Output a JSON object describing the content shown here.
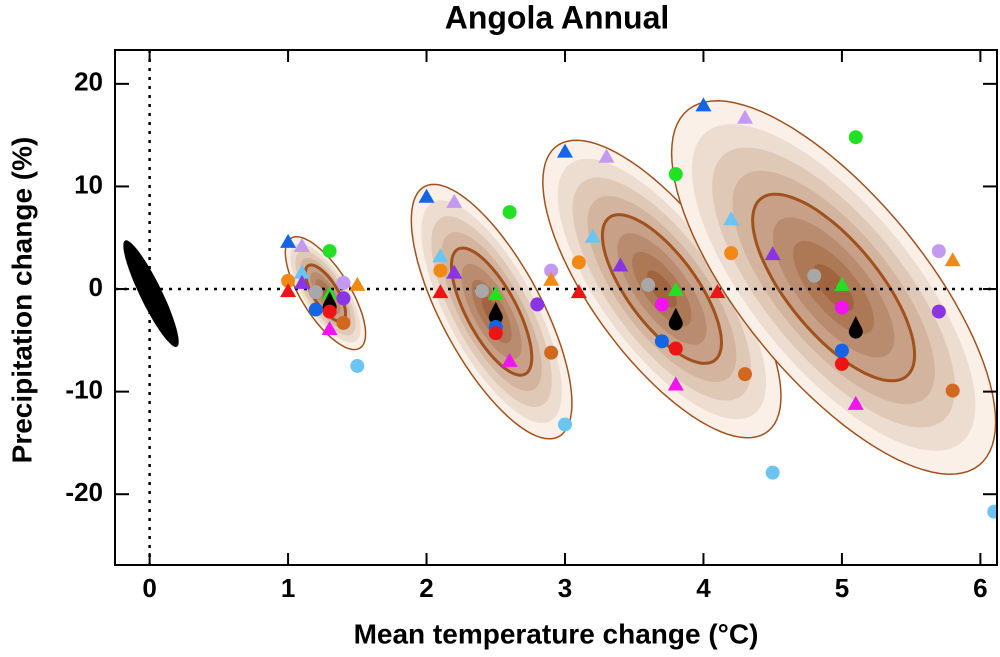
{
  "chart_data": {
    "type": "scatter",
    "title": "Angola Annual",
    "x_label": "Mean temperature change (°C)",
    "y_label": "Precipitation change (%)",
    "xlim": [
      -0.25,
      6.12
    ],
    "ylim": [
      -26.9,
      23.3
    ],
    "xticks": [
      0,
      1,
      2,
      3,
      4,
      5,
      6
    ],
    "yticks": [
      -20,
      -10,
      0,
      10,
      20
    ],
    "zero_lines": true,
    "control": {
      "x": 0.01,
      "y": -0.45,
      "sx": 0.2,
      "sy": 5.2,
      "rho": -0.9,
      "color": "#000000"
    },
    "ellipses": [
      {
        "x": 1.27,
        "y": -0.4,
        "sx": 0.29,
        "sy": 5.5,
        "rho": -0.72
      },
      {
        "x": 2.47,
        "y": -2.2,
        "sx": 0.58,
        "sy": 12.4,
        "rho": -0.72
      },
      {
        "x": 3.7,
        "y": 0,
        "sx": 0.86,
        "sy": 14.5,
        "rho": -0.72
      },
      {
        "x": 4.94,
        "y": 0.15,
        "sx": 1.17,
        "sy": 18.2,
        "rho": -0.72
      }
    ],
    "series": [
      {
        "color": "#1464e6",
        "marker": "triangle",
        "x": [
          1.0,
          2.0,
          3.0,
          4.0
        ],
        "values": [
          4.6,
          9.0,
          13.4,
          17.9
        ]
      },
      {
        "color": "#c49af0",
        "marker": "triangle",
        "x": [
          1.1,
          2.2,
          3.3,
          4.3
        ],
        "values": [
          4.2,
          8.5,
          12.9,
          16.7
        ]
      },
      {
        "color": "#22e022",
        "marker": "circle",
        "x": [
          1.3,
          2.6,
          3.8,
          5.1
        ],
        "values": [
          3.7,
          7.5,
          11.2,
          14.8
        ]
      },
      {
        "color": "#6cc4f2",
        "marker": "triangle",
        "x": [
          1.1,
          2.1,
          3.2,
          4.2
        ],
        "values": [
          1.6,
          3.2,
          5.1,
          6.8
        ]
      },
      {
        "color": "#f08a14",
        "marker": "circle",
        "x": [
          1.0,
          2.1,
          3.1,
          4.2
        ],
        "values": [
          0.8,
          1.8,
          2.6,
          3.5
        ]
      },
      {
        "color": "#8a34e4",
        "marker": "triangle",
        "x": [
          1.1,
          2.2,
          3.4,
          4.5
        ],
        "values": [
          0.6,
          1.6,
          2.3,
          3.4
        ]
      },
      {
        "color": "#c49af0",
        "marker": "circle",
        "x": [
          1.4,
          2.9,
          5.7
        ],
        "values": [
          0.6,
          1.8,
          3.7
        ]
      },
      {
        "color": "#f08a14",
        "marker": "triangle",
        "x": [
          1.5,
          2.9,
          5.8
        ],
        "values": [
          0.4,
          0.9,
          2.8
        ]
      },
      {
        "color": "#ee1414",
        "marker": "triangle",
        "x": [
          1.0,
          2.1,
          3.1,
          4.1
        ],
        "values": [
          -0.2,
          -0.3,
          -0.3,
          -0.3
        ]
      },
      {
        "color": "#a8a8a8",
        "marker": "circle",
        "x": [
          1.2,
          2.4,
          3.6,
          4.8
        ],
        "values": [
          -0.3,
          -0.2,
          0.4,
          1.3
        ]
      },
      {
        "color": "#22e022",
        "marker": "triangle",
        "x": [
          1.3,
          2.5,
          3.8,
          5.0
        ],
        "values": [
          -0.5,
          -0.5,
          -0.1,
          0.4
        ]
      },
      {
        "color": "#8a34e4",
        "marker": "circle",
        "x": [
          1.4,
          2.8,
          5.7
        ],
        "values": [
          -0.9,
          -1.5,
          -2.2
        ]
      },
      {
        "color": "#f014f0",
        "marker": "circle",
        "x": [
          3.7,
          5.0
        ],
        "values": [
          -1.5,
          -1.8
        ]
      },
      {
        "color": "#000000",
        "marker": "drop",
        "x": [
          1.3,
          2.5,
          3.8,
          5.1
        ],
        "values": [
          -1.4,
          -2.4,
          -3.0,
          -3.8
        ]
      },
      {
        "color": "#1464e6",
        "marker": "circle",
        "x": [
          1.2,
          2.5,
          3.7,
          5.0
        ],
        "values": [
          -2.0,
          -3.7,
          -5.1,
          -6.0
        ]
      },
      {
        "color": "#ee1414",
        "marker": "circle",
        "x": [
          1.3,
          2.5,
          3.8,
          5.0
        ],
        "values": [
          -2.2,
          -4.3,
          -5.8,
          -7.3
        ]
      },
      {
        "color": "#d2681e",
        "marker": "circle",
        "x": [
          1.4,
          2.9,
          4.3,
          5.8
        ],
        "values": [
          -3.3,
          -6.2,
          -8.3,
          -9.9
        ]
      },
      {
        "color": "#f014f0",
        "marker": "triangle",
        "x": [
          1.3,
          2.6,
          3.8,
          5.1
        ],
        "values": [
          -3.9,
          -7.0,
          -9.3,
          -11.2
        ]
      },
      {
        "color": "#6cc4f2",
        "marker": "circle",
        "x": [
          1.5,
          3.0,
          4.5,
          6.1
        ],
        "values": [
          -7.5,
          -13.2,
          -17.9,
          -21.7
        ]
      }
    ]
  }
}
